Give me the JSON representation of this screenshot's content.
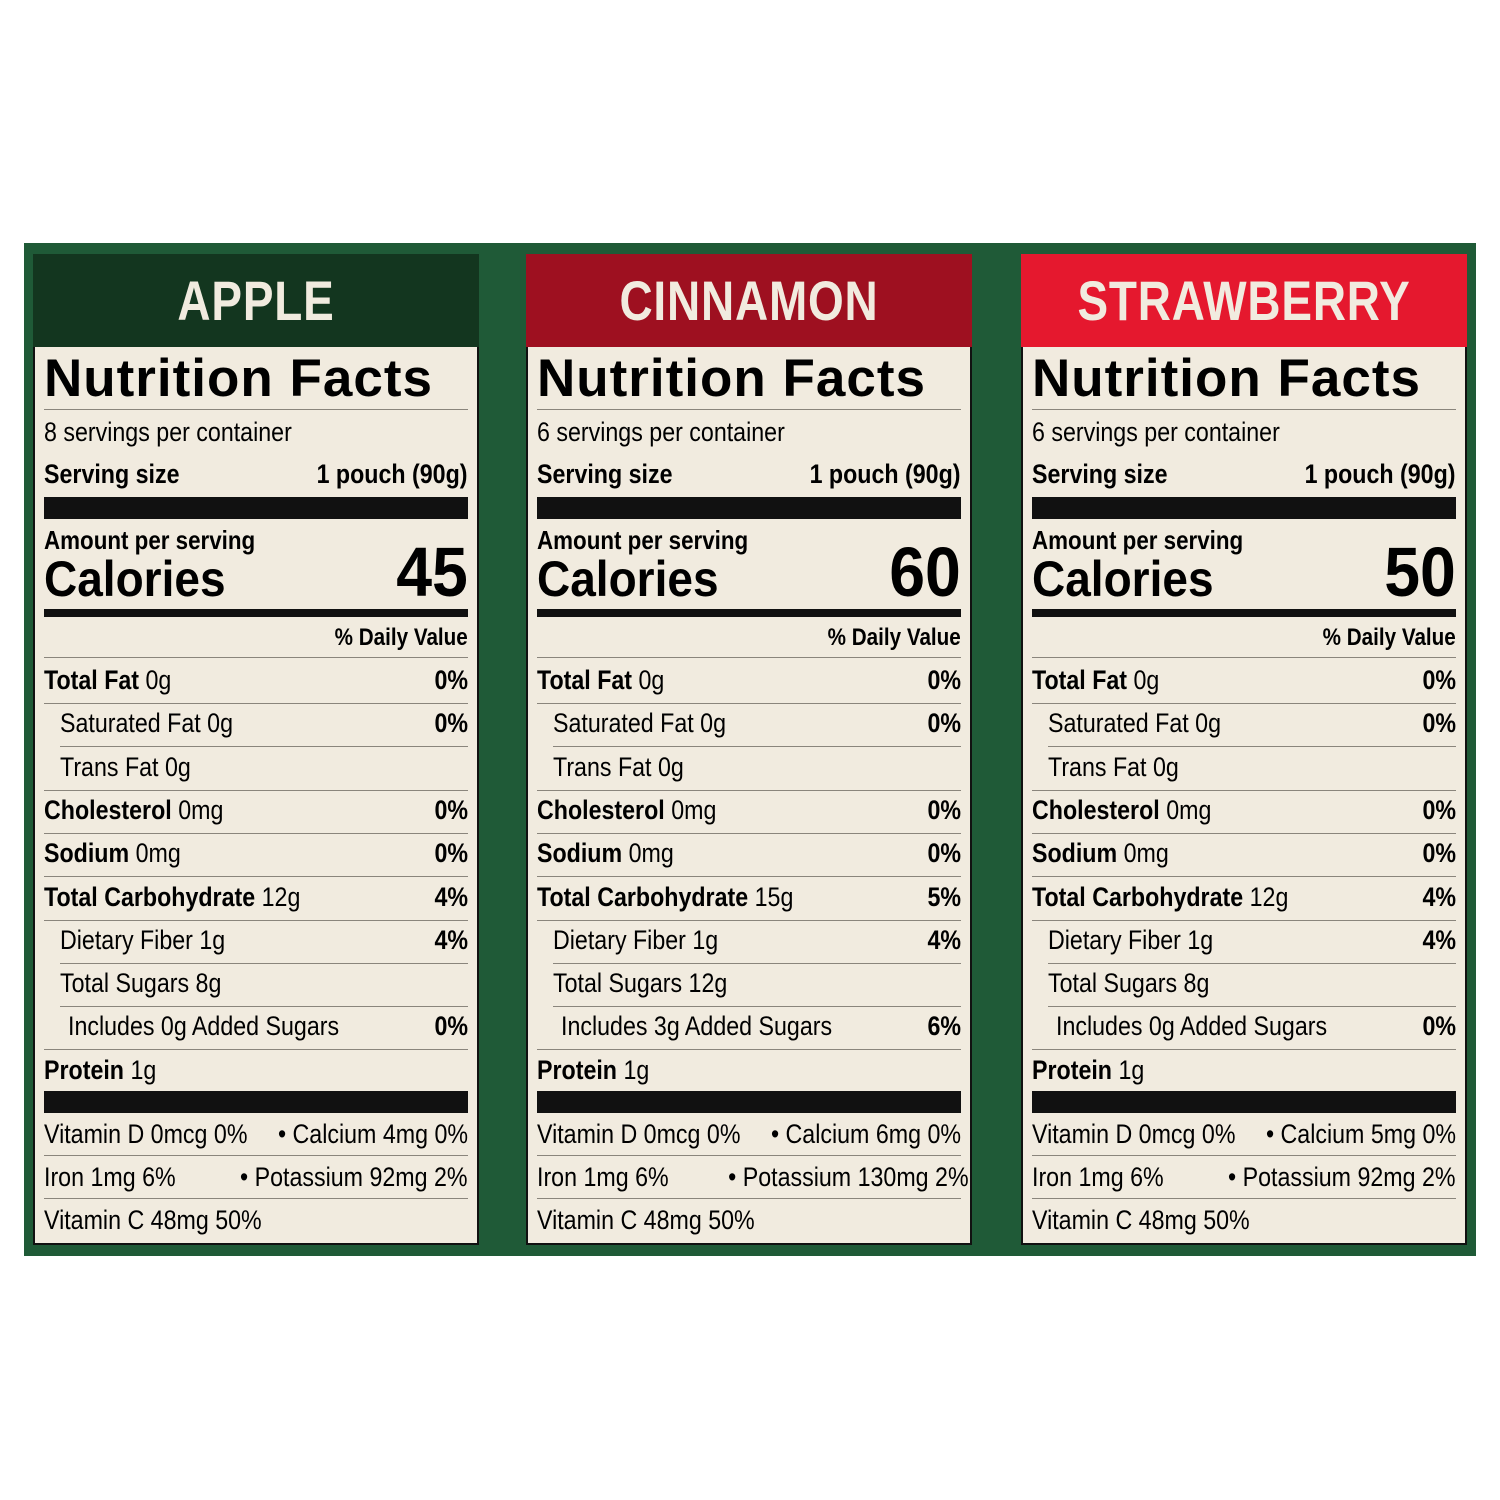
{
  "colors": {
    "frame": "#1f5a37",
    "label_bg": "#f1ebdf"
  },
  "panels": [
    {
      "flavor": "APPLE",
      "header_color": "#13361f",
      "title": "Nutrition Facts",
      "servings": "8 servings per container",
      "serving_size_label": "Serving size",
      "serving_size": "1 pouch (90g)",
      "amount_label": "Amount per serving",
      "calories_label": "Calories",
      "calories": "45",
      "dv_header": "% Daily Value",
      "nutrients": [
        {
          "name": "Total Fat",
          "amount": "0g",
          "dv": "0%",
          "bold": true,
          "indent": 0
        },
        {
          "name": "Saturated Fat",
          "amount": "0g",
          "dv": "0%",
          "bold": false,
          "indent": 1
        },
        {
          "name": "Trans Fat",
          "amount": "0g",
          "dv": "",
          "bold": false,
          "indent": 1
        },
        {
          "name": "Cholesterol",
          "amount": "0mg",
          "dv": "0%",
          "bold": true,
          "indent": 0
        },
        {
          "name": "Sodium",
          "amount": "0mg",
          "dv": "0%",
          "bold": true,
          "indent": 0
        },
        {
          "name": "Total Carbohydrate",
          "amount": "12g",
          "dv": "4%",
          "bold": true,
          "indent": 0
        },
        {
          "name": "Dietary Fiber",
          "amount": "1g",
          "dv": "4%",
          "bold": false,
          "indent": 1
        },
        {
          "name": "Total Sugars",
          "amount": "8g",
          "dv": "",
          "bold": false,
          "indent": 1
        },
        {
          "name": "Includes 0g Added Sugars",
          "amount": "",
          "dv": "0%",
          "bold": false,
          "indent": 2
        },
        {
          "name": "Protein",
          "amount": "1g",
          "dv": "",
          "bold": true,
          "indent": 0
        }
      ],
      "vitamins": [
        "Vitamin D 0mcg 0%",
        "• Calcium 4mg 0%",
        "Iron 1mg 6%",
        "• Potassium 92mg 2%",
        "Vitamin C 48mg 50%"
      ]
    },
    {
      "flavor": "CINNAMON",
      "header_color": "#9e1020",
      "title": "Nutrition Facts",
      "servings": "6 servings per container",
      "serving_size_label": "Serving size",
      "serving_size": "1 pouch (90g)",
      "amount_label": "Amount per serving",
      "calories_label": "Calories",
      "calories": "60",
      "dv_header": "% Daily Value",
      "nutrients": [
        {
          "name": "Total Fat",
          "amount": "0g",
          "dv": "0%",
          "bold": true,
          "indent": 0
        },
        {
          "name": "Saturated Fat",
          "amount": "0g",
          "dv": "0%",
          "bold": false,
          "indent": 1
        },
        {
          "name": "Trans Fat",
          "amount": "0g",
          "dv": "",
          "bold": false,
          "indent": 1
        },
        {
          "name": "Cholesterol",
          "amount": "0mg",
          "dv": "0%",
          "bold": true,
          "indent": 0
        },
        {
          "name": "Sodium",
          "amount": "0mg",
          "dv": "0%",
          "bold": true,
          "indent": 0
        },
        {
          "name": "Total Carbohydrate",
          "amount": "15g",
          "dv": "5%",
          "bold": true,
          "indent": 0
        },
        {
          "name": "Dietary Fiber",
          "amount": "1g",
          "dv": "4%",
          "bold": false,
          "indent": 1
        },
        {
          "name": "Total Sugars",
          "amount": "12g",
          "dv": "",
          "bold": false,
          "indent": 1
        },
        {
          "name": "Includes 3g Added Sugars",
          "amount": "",
          "dv": "6%",
          "bold": false,
          "indent": 2
        },
        {
          "name": "Protein",
          "amount": "1g",
          "dv": "",
          "bold": true,
          "indent": 0
        }
      ],
      "vitamins": [
        "Vitamin D 0mcg 0%",
        "• Calcium 6mg 0%",
        "Iron 1mg 6%",
        "• Potassium 130mg 2%",
        "Vitamin C 48mg 50%"
      ]
    },
    {
      "flavor": "STRAWBERRY",
      "header_color": "#e5182e",
      "title": "Nutrition Facts",
      "servings": "6 servings per container",
      "serving_size_label": "Serving size",
      "serving_size": "1 pouch (90g)",
      "amount_label": "Amount per serving",
      "calories_label": "Calories",
      "calories": "50",
      "dv_header": "% Daily Value",
      "nutrients": [
        {
          "name": "Total Fat",
          "amount": "0g",
          "dv": "0%",
          "bold": true,
          "indent": 0
        },
        {
          "name": "Saturated Fat",
          "amount": "0g",
          "dv": "0%",
          "bold": false,
          "indent": 1
        },
        {
          "name": "Trans Fat",
          "amount": "0g",
          "dv": "",
          "bold": false,
          "indent": 1
        },
        {
          "name": "Cholesterol",
          "amount": "0mg",
          "dv": "0%",
          "bold": true,
          "indent": 0
        },
        {
          "name": "Sodium",
          "amount": "0mg",
          "dv": "0%",
          "bold": true,
          "indent": 0
        },
        {
          "name": "Total Carbohydrate",
          "amount": "12g",
          "dv": "4%",
          "bold": true,
          "indent": 0
        },
        {
          "name": "Dietary Fiber",
          "amount": "1g",
          "dv": "4%",
          "bold": false,
          "indent": 1
        },
        {
          "name": "Total Sugars",
          "amount": "8g",
          "dv": "",
          "bold": false,
          "indent": 1
        },
        {
          "name": "Includes 0g Added Sugars",
          "amount": "",
          "dv": "0%",
          "bold": false,
          "indent": 2
        },
        {
          "name": "Protein",
          "amount": "1g",
          "dv": "",
          "bold": true,
          "indent": 0
        }
      ],
      "vitamins": [
        "Vitamin D 0mcg 0%",
        "• Calcium 5mg 0%",
        "Iron 1mg 6%",
        "• Potassium 92mg 2%",
        "Vitamin C 48mg 50%"
      ]
    }
  ]
}
